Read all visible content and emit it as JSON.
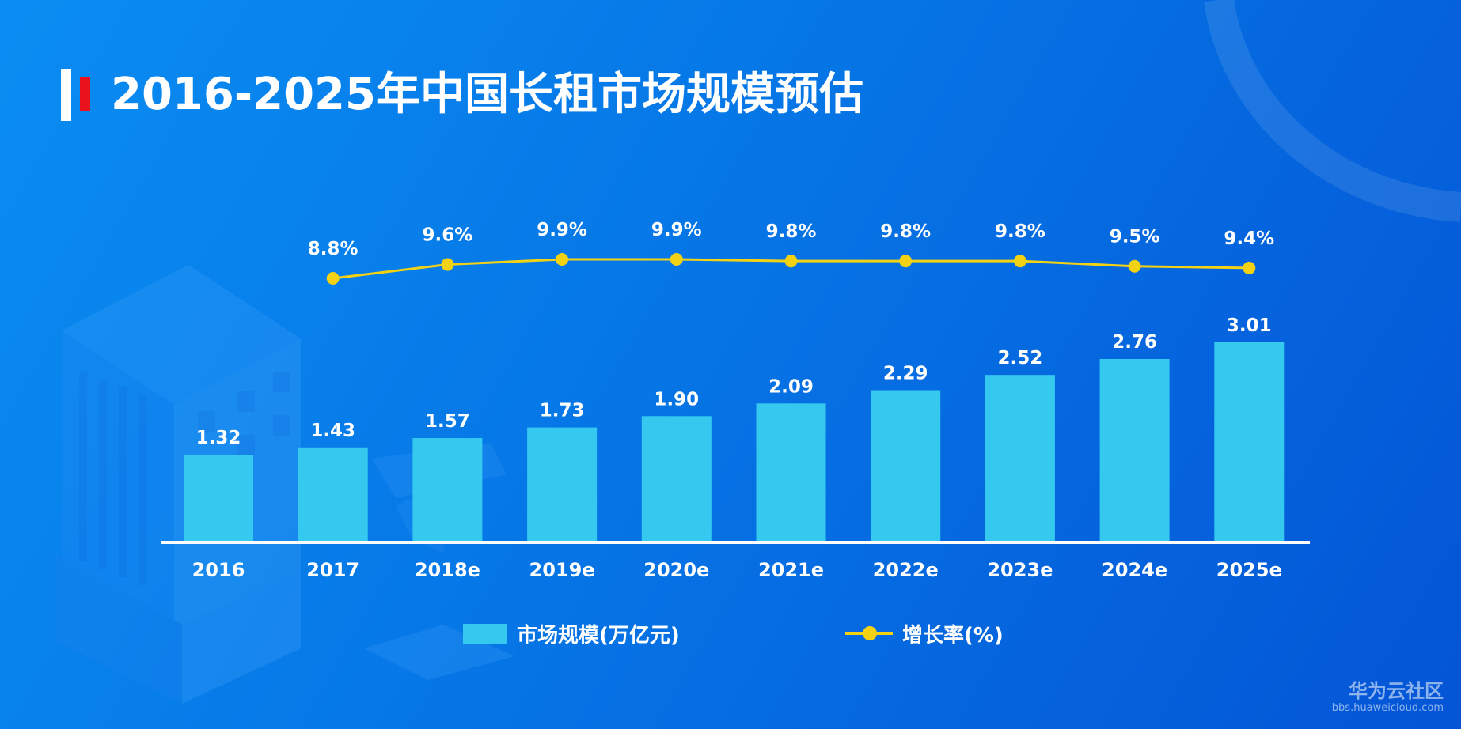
{
  "title": "2016-2025年中国长租市场规模预估",
  "colors": {
    "bar": "#35c9ef",
    "line": "#f3d214",
    "axis": "#ffffff",
    "label": "#ffffff",
    "title_accent": "#e8131d"
  },
  "chart_data": {
    "type": "bar+line",
    "title": "2016-2025年中国长租市场规模预估",
    "categories": [
      "2016",
      "2017",
      "2018e",
      "2019e",
      "2020e",
      "2021e",
      "2022e",
      "2023e",
      "2024e",
      "2025e"
    ],
    "series": [
      {
        "name": "市场规模(万亿元)",
        "type": "bar",
        "values": [
          1.32,
          1.43,
          1.57,
          1.73,
          1.9,
          2.09,
          2.29,
          2.52,
          2.76,
          3.01
        ],
        "labels": [
          "1.32",
          "1.43",
          "1.57",
          "1.73",
          "1.90",
          "2.09",
          "2.29",
          "2.52",
          "2.76",
          "3.01"
        ]
      },
      {
        "name": "增长率(%)",
        "type": "line",
        "values": [
          null,
          8.8,
          9.6,
          9.9,
          9.9,
          9.8,
          9.8,
          9.8,
          9.5,
          9.4
        ],
        "labels": [
          "",
          "8.8%",
          "9.6%",
          "9.9%",
          "9.9%",
          "9.8%",
          "9.8%",
          "9.8%",
          "9.5%",
          "9.4%"
        ]
      }
    ],
    "bar_axis_range": [
      0,
      3.01
    ],
    "line_axis_range": [
      8.8,
      9.9
    ],
    "grid": false,
    "legend_position": "bottom"
  },
  "legend": {
    "bar_label": "市场规模(万亿元)",
    "line_label": "增长率(%)"
  },
  "watermark": {
    "main": "华为云社区",
    "sub": "bbs.huaweicloud.com"
  }
}
